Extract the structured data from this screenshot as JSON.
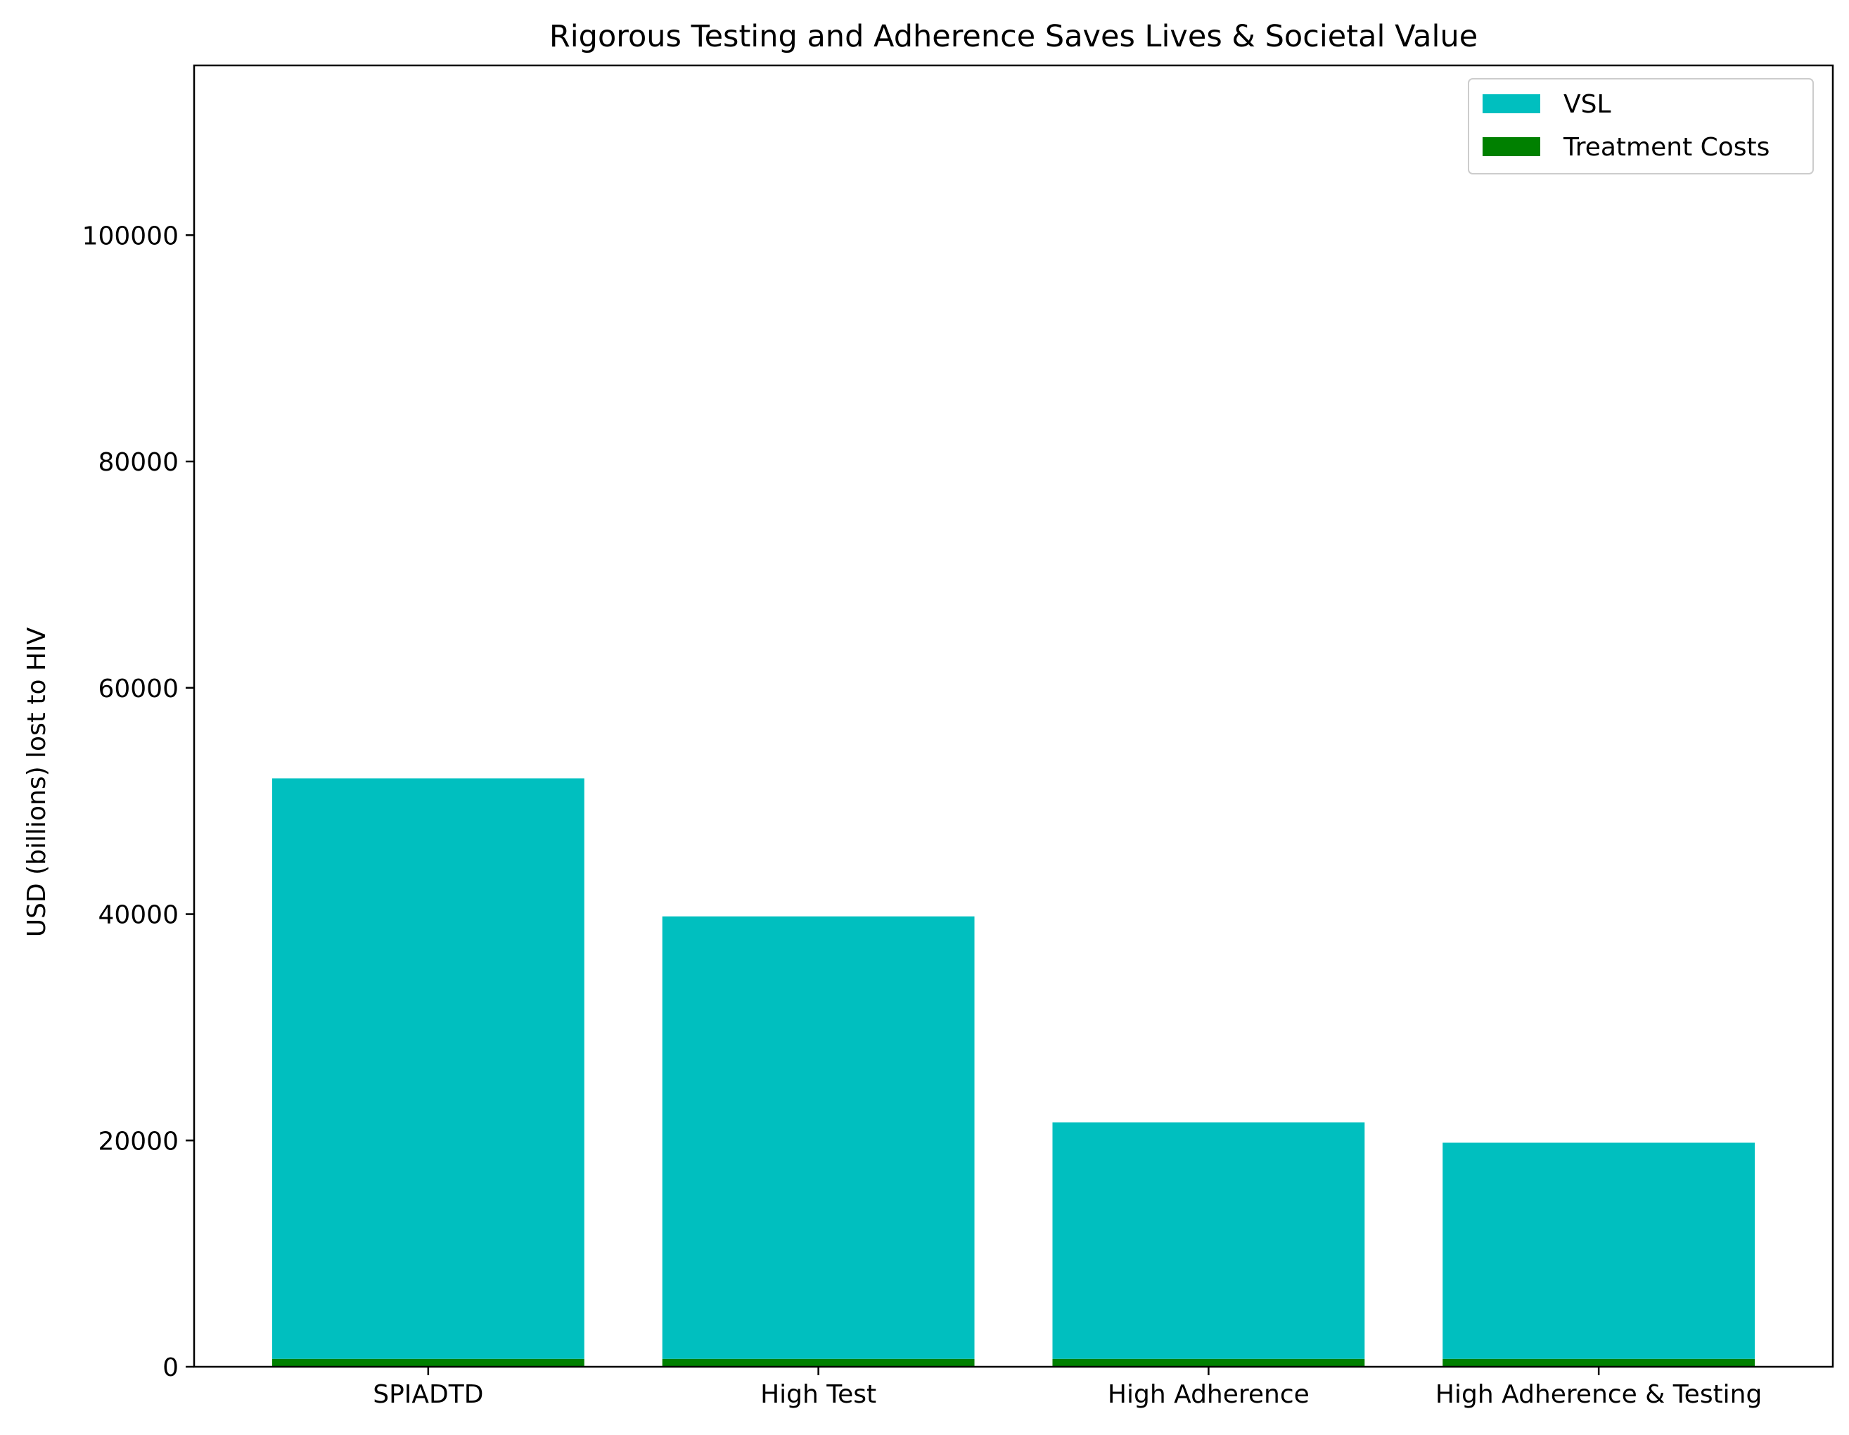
{
  "chart_data": {
    "type": "bar",
    "stacked": true,
    "title": "Rigorous Testing and Adherence Saves Lives & Societal Value",
    "xlabel": "",
    "ylabel": "USD (billions) lost to HIV",
    "categories": [
      "SPIADTD",
      "High Test",
      "High Adherence",
      "High Adherence & Testing"
    ],
    "series": [
      {
        "name": "Treatment Costs",
        "color": "#008000",
        "values": [
          700,
          700,
          700,
          700
        ]
      },
      {
        "name": "VSL",
        "color": "#00bfbf",
        "values": [
          51300,
          39100,
          20900,
          19100
        ]
      }
    ],
    "legend_order": [
      "VSL",
      "Treatment Costs"
    ],
    "legend_position": "top-right",
    "ylim": [
      0,
      115000
    ],
    "yticks": [
      0,
      20000,
      40000,
      60000,
      80000,
      100000
    ],
    "grid": false
  }
}
